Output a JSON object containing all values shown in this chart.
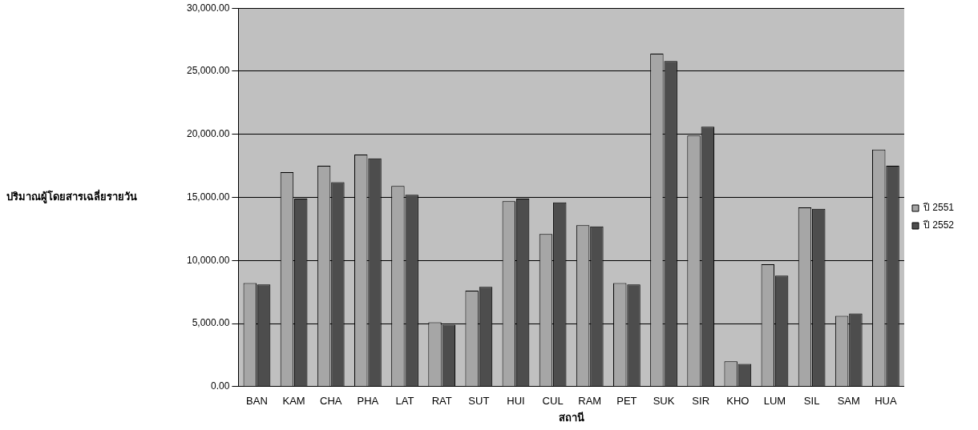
{
  "chart_data": {
    "type": "bar",
    "xlabel": "สถานี",
    "ylabel": "ปริมาณผู้โดยสารเฉลี่ยรายวัน",
    "categories": [
      "BAN",
      "KAM",
      "CHA",
      "PHA",
      "LAT",
      "RAT",
      "SUT",
      "HUI",
      "CUL",
      "RAM",
      "PET",
      "SUK",
      "SIR",
      "KHO",
      "LUM",
      "SIL",
      "SAM",
      "HUA"
    ],
    "series": [
      {
        "name": "ปี 2551",
        "color": "#a6a6a6",
        "values": [
          8200,
          17000,
          17500,
          18400,
          15900,
          5100,
          7600,
          14700,
          12100,
          12800,
          8200,
          26400,
          19900,
          2000,
          9700,
          14200,
          5600,
          18800
        ]
      },
      {
        "name": "ปี 2552",
        "color": "#4d4d4d",
        "values": [
          8100,
          14900,
          16200,
          18100,
          15200,
          4900,
          7900,
          14900,
          14600,
          12700,
          8100,
          25800,
          20600,
          1800,
          8800,
          14100,
          5800,
          17500
        ]
      }
    ],
    "ylim": [
      0,
      30000
    ],
    "yticks": [
      {
        "value": 0,
        "label": "0.00"
      },
      {
        "value": 5000,
        "label": "5,000.00"
      },
      {
        "value": 10000,
        "label": "10,000.00"
      },
      {
        "value": 15000,
        "label": "15,000.00"
      },
      {
        "value": 20000,
        "label": "20,000.00"
      },
      {
        "value": 25000,
        "label": "25,000.00"
      },
      {
        "value": 30000,
        "label": "30,000.00"
      }
    ],
    "grid": "y",
    "legend": "right"
  }
}
